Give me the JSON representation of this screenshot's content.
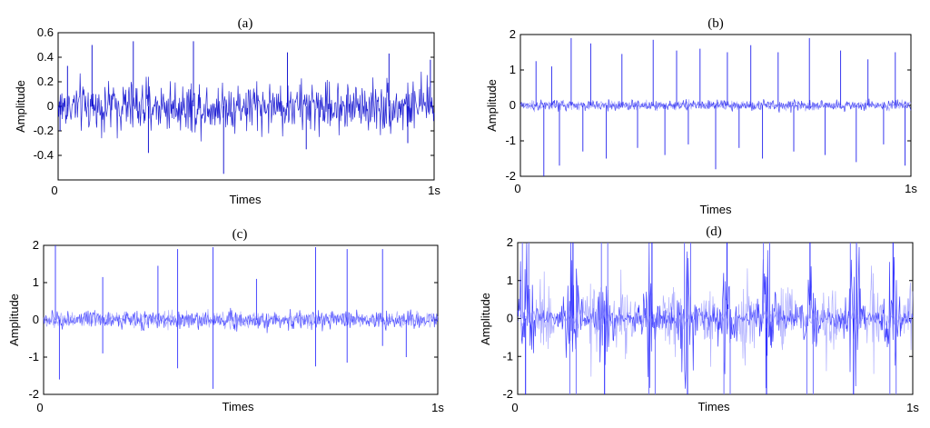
{
  "chart_data": [
    {
      "panel": "(a)",
      "type": "line",
      "title": "(a)",
      "xlabel": "Times",
      "ylabel": "Amplitude",
      "xlim": [
        0,
        1
      ],
      "ylim": [
        -0.6,
        0.6
      ],
      "x_tick_labels": [
        "0",
        "1s"
      ],
      "y_ticks": [
        -0.4,
        -0.2,
        0,
        0.2,
        0.4,
        0.6
      ],
      "y_tick_labels": [
        "-0.4",
        "-0.2",
        "0",
        "0.2",
        "0.4",
        "0.6"
      ],
      "series": [
        {
          "color": "#0000cc",
          "noise_amplitude": 0.22,
          "spikes": [
            {
              "x": 0.005,
              "y": -0.2
            },
            {
              "x": 0.025,
              "y": 0.33
            },
            {
              "x": 0.09,
              "y": 0.5
            },
            {
              "x": 0.2,
              "y": 0.53
            },
            {
              "x": 0.24,
              "y": -0.38
            },
            {
              "x": 0.36,
              "y": 0.53
            },
            {
              "x": 0.44,
              "y": -0.55
            },
            {
              "x": 0.61,
              "y": 0.44
            },
            {
              "x": 0.66,
              "y": -0.35
            },
            {
              "x": 0.88,
              "y": 0.43
            },
            {
              "x": 0.93,
              "y": -0.3
            },
            {
              "x": 0.99,
              "y": 0.38
            }
          ]
        }
      ]
    },
    {
      "panel": "(b)",
      "type": "line",
      "title": "(b)",
      "xlabel": "Times",
      "ylabel": "Amplitude",
      "xlim": [
        0,
        1
      ],
      "ylim": [
        -2,
        2
      ],
      "x_tick_labels": [
        "0",
        "1s"
      ],
      "y_ticks": [
        -2,
        -1,
        0,
        1,
        2
      ],
      "y_tick_labels": [
        "-2",
        "-1",
        "0",
        "1",
        "2"
      ],
      "series": [
        {
          "color": "#2222ee",
          "noise_amplitude": 0.18,
          "spikes": [
            {
              "x": 0.04,
              "y": 1.25
            },
            {
              "x": 0.06,
              "y": -2.0
            },
            {
              "x": 0.08,
              "y": 1.1
            },
            {
              "x": 0.1,
              "y": -1.7
            },
            {
              "x": 0.13,
              "y": 1.9
            },
            {
              "x": 0.16,
              "y": -1.3
            },
            {
              "x": 0.18,
              "y": 1.75
            },
            {
              "x": 0.22,
              "y": -1.5
            },
            {
              "x": 0.26,
              "y": 1.45
            },
            {
              "x": 0.3,
              "y": -1.2
            },
            {
              "x": 0.34,
              "y": 1.85
            },
            {
              "x": 0.37,
              "y": -1.4
            },
            {
              "x": 0.4,
              "y": 1.55
            },
            {
              "x": 0.43,
              "y": -1.1
            },
            {
              "x": 0.46,
              "y": 1.6
            },
            {
              "x": 0.5,
              "y": -1.8
            },
            {
              "x": 0.53,
              "y": 1.5
            },
            {
              "x": 0.56,
              "y": -1.2
            },
            {
              "x": 0.59,
              "y": 1.7
            },
            {
              "x": 0.62,
              "y": -1.5
            },
            {
              "x": 0.66,
              "y": 1.5
            },
            {
              "x": 0.7,
              "y": -1.3
            },
            {
              "x": 0.74,
              "y": 1.9
            },
            {
              "x": 0.78,
              "y": -1.4
            },
            {
              "x": 0.82,
              "y": 1.55
            },
            {
              "x": 0.86,
              "y": -1.6
            },
            {
              "x": 0.89,
              "y": 1.3
            },
            {
              "x": 0.93,
              "y": -1.1
            },
            {
              "x": 0.96,
              "y": 1.5
            },
            {
              "x": 0.985,
              "y": -1.7
            }
          ]
        }
      ]
    },
    {
      "panel": "(c)",
      "type": "line",
      "title": "(c)",
      "xlabel": "Times",
      "ylabel": "Amplitude",
      "xlim": [
        0,
        1
      ],
      "ylim": [
        -2,
        2
      ],
      "x_tick_labels": [
        "0",
        "1s"
      ],
      "y_ticks": [
        -2,
        -1,
        0,
        1,
        2
      ],
      "y_tick_labels": [
        "-2",
        "-1",
        "0",
        "1",
        "2"
      ],
      "series": [
        {
          "color": "#3333ff",
          "noise_amplitude": 0.3,
          "spikes": [
            {
              "x": 0.03,
              "y": 2.0
            },
            {
              "x": 0.04,
              "y": -1.6
            },
            {
              "x": 0.15,
              "y": 1.15
            },
            {
              "x": 0.15,
              "y": -0.9
            },
            {
              "x": 0.29,
              "y": 1.45
            },
            {
              "x": 0.34,
              "y": 1.9
            },
            {
              "x": 0.34,
              "y": -1.3
            },
            {
              "x": 0.43,
              "y": 1.95
            },
            {
              "x": 0.43,
              "y": -1.85
            },
            {
              "x": 0.54,
              "y": 1.1
            },
            {
              "x": 0.69,
              "y": 1.95
            },
            {
              "x": 0.69,
              "y": -1.25
            },
            {
              "x": 0.77,
              "y": 1.9
            },
            {
              "x": 0.77,
              "y": -1.15
            },
            {
              "x": 0.86,
              "y": 1.9
            },
            {
              "x": 0.86,
              "y": -0.7
            },
            {
              "x": 0.92,
              "y": -1.0
            }
          ]
        }
      ]
    },
    {
      "panel": "(d)",
      "type": "line",
      "title": "(d)",
      "xlabel": "Times",
      "ylabel": "Amplitude",
      "xlim": [
        0,
        1
      ],
      "ylim": [
        -2,
        2
      ],
      "x_tick_labels": [
        "0",
        "1s"
      ],
      "y_ticks": [
        -2,
        -1,
        0,
        1,
        2
      ],
      "y_tick_labels": [
        "-2",
        "-1",
        "0",
        "1",
        "2"
      ],
      "series": [
        {
          "color": "#2020ff",
          "noise_amplitude": 0.3,
          "bursts_x": [
            0.02,
            0.14,
            0.22,
            0.34,
            0.43,
            0.53,
            0.63,
            0.74,
            0.85,
            0.95
          ],
          "burst_peak": 2.0
        }
      ]
    }
  ]
}
